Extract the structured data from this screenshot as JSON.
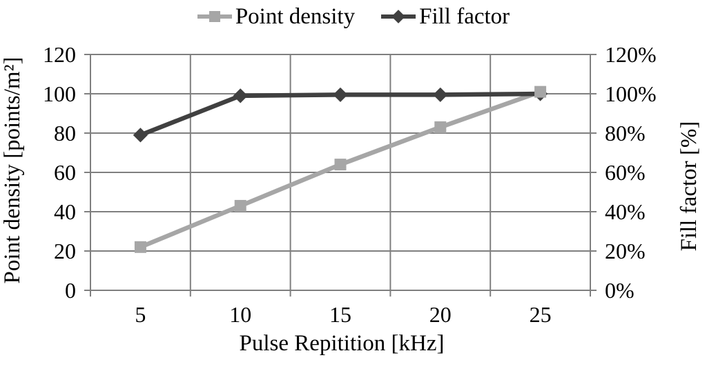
{
  "chart_data": {
    "type": "line",
    "title": "",
    "x": [
      5,
      10,
      15,
      20,
      25
    ],
    "x_tick_labels": [
      "5",
      "10",
      "15",
      "20",
      "25"
    ],
    "xlabel": "Pulse Repitition [kHz]",
    "ylabel_left": "Point density [points/m²]",
    "ylabel_right": "Fill factor [%]",
    "ylim_left": [
      0,
      120
    ],
    "ylim_right_pct": [
      0,
      120
    ],
    "y_left_ticks": [
      0,
      20,
      40,
      60,
      80,
      100,
      120
    ],
    "y_left_tick_labels": [
      "0",
      "20",
      "40",
      "60",
      "80",
      "100",
      "120"
    ],
    "y_right_tick_labels": [
      "0%",
      "20%",
      "40%",
      "60%",
      "80%",
      "100%",
      "120%"
    ],
    "grid": true,
    "legend_position": "top",
    "series": [
      {
        "name": "Point density",
        "axis": "left",
        "marker": "square",
        "color": "#A6A6A6",
        "values": [
          22,
          43,
          64,
          83,
          101
        ]
      },
      {
        "name": "Fill factor",
        "axis": "right",
        "marker": "diamond",
        "color": "#404040",
        "values": [
          79,
          99,
          99.5,
          99.5,
          100
        ]
      }
    ],
    "colors": {
      "background": "#FFFFFF",
      "grid": "#7F7F7F",
      "text": "#000000"
    }
  }
}
